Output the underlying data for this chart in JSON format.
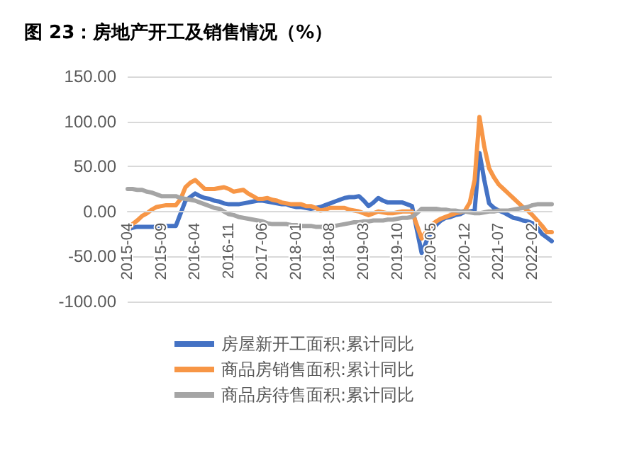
{
  "chart_data": {
    "type": "line",
    "title": "图 23：房地产开工及销售情况（%）",
    "categories": [
      "2015-04",
      null,
      null,
      null,
      null,
      null,
      null,
      "2015-09",
      null,
      null,
      null,
      null,
      null,
      null,
      "2016-04",
      null,
      null,
      null,
      null,
      null,
      null,
      "2016-11",
      null,
      null,
      null,
      null,
      null,
      null,
      "2017-06",
      null,
      null,
      null,
      null,
      null,
      null,
      "2018-01",
      null,
      null,
      null,
      null,
      null,
      null,
      "2018-08",
      null,
      null,
      null,
      null,
      null,
      null,
      "2019-03",
      null,
      null,
      null,
      null,
      null,
      null,
      "2019-10",
      null,
      null,
      null,
      null,
      null,
      null,
      "2020-05",
      null,
      null,
      null,
      null,
      null,
      null,
      "2020-12",
      null,
      null,
      null,
      null,
      null,
      null,
      "2021-07",
      null,
      null,
      null,
      null,
      null,
      null,
      "2022-02",
      null,
      null,
      null,
      null
    ],
    "series": [
      {
        "name": "房屋新开工面积:累计同比",
        "color": "#4472c4",
        "values": [
          -20,
          -18,
          -17,
          -17,
          -17,
          -17,
          -17,
          -15,
          -16,
          -16,
          -16,
          -2,
          12,
          16,
          20,
          17,
          15,
          14,
          12,
          11,
          9,
          8,
          8,
          8,
          9,
          10,
          11,
          12,
          12,
          11,
          10,
          9,
          8,
          8,
          6,
          5,
          5,
          4,
          3,
          4,
          5,
          7,
          9,
          11,
          13,
          15,
          16,
          16,
          17,
          12,
          6,
          10,
          15,
          12,
          10,
          10,
          10,
          10,
          8,
          6,
          -20,
          -46,
          -33,
          -23,
          -15,
          -10,
          -7,
          -6,
          -4,
          -3,
          0,
          0,
          1,
          65,
          35,
          9,
          4,
          1,
          -1,
          -4,
          -7,
          -8,
          -10,
          -11,
          -13,
          -18,
          -25,
          -29,
          -33
        ]
      },
      {
        "name": "商品房销售面积:累计同比",
        "color": "#f79646",
        "values": [
          -20,
          -14,
          -10,
          -5,
          -2,
          2,
          5,
          6,
          7,
          7,
          7,
          14,
          27,
          32,
          35,
          30,
          25,
          25,
          25,
          26,
          27,
          25,
          22,
          23,
          24,
          20,
          17,
          14,
          14,
          15,
          13,
          12,
          10,
          9,
          8,
          8,
          8,
          6,
          6,
          4,
          1,
          2,
          4,
          4,
          4,
          4,
          2,
          1,
          0,
          -2,
          -4,
          -2,
          0,
          -1,
          -2,
          -2,
          -1,
          0,
          0,
          0,
          -15,
          -30,
          -22,
          -15,
          -11,
          -8,
          -6,
          -4,
          -2,
          -1,
          1,
          10,
          35,
          105,
          72,
          48,
          38,
          30,
          25,
          20,
          15,
          10,
          5,
          1,
          -4,
          -10,
          -16,
          -23,
          -23
        ]
      },
      {
        "name": "商品房待售面积:累计同比",
        "color": "#a5a5a5",
        "values": [
          25,
          25,
          24,
          24,
          22,
          21,
          19,
          17,
          17,
          17,
          17,
          15,
          14,
          13,
          12,
          10,
          8,
          6,
          4,
          3,
          0,
          -3,
          -4,
          -6,
          -7,
          -8,
          -9,
          -10,
          -11,
          -13,
          -14,
          -14,
          -14,
          -14,
          -15,
          -15,
          -16,
          -16,
          -16,
          -17,
          -17,
          -17,
          -16,
          -16,
          -15,
          -14,
          -13,
          -12,
          -12,
          -11,
          -11,
          -10,
          -10,
          -10,
          -9,
          -9,
          -8,
          -7,
          -7,
          -6,
          -2,
          3,
          3,
          3,
          3,
          2,
          2,
          1,
          1,
          0,
          0,
          -1,
          -2,
          -2,
          -1,
          0,
          0,
          1,
          1,
          1,
          2,
          3,
          4,
          5,
          7,
          8,
          8,
          8,
          8
        ]
      }
    ],
    "ylim": [
      -100,
      150
    ],
    "yticks": [
      {
        "value": -100,
        "label": "-100.00"
      },
      {
        "value": -50,
        "label": "-50.00"
      },
      {
        "value": 0,
        "label": "0.00"
      },
      {
        "value": 50,
        "label": "50.00"
      },
      {
        "value": 100,
        "label": "100.00"
      },
      {
        "value": 150,
        "label": "150.00"
      }
    ],
    "grid": "y",
    "legend": "bottom",
    "marker": "none",
    "line_style": "solid"
  }
}
